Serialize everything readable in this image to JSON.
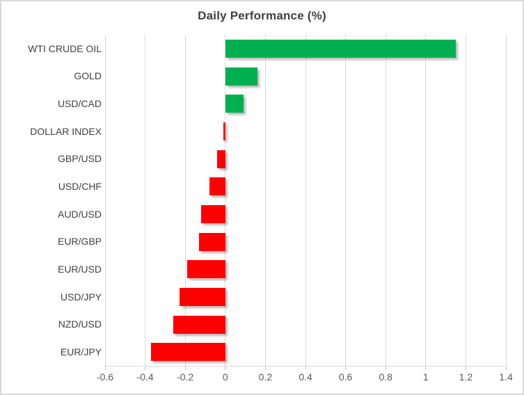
{
  "chart_data": {
    "type": "bar",
    "orientation": "horizontal",
    "title": "Daily Performance (%)",
    "xlabel": "",
    "ylabel": "",
    "categories": [
      "WTI CRUDE OIL",
      "GOLD",
      "USD/CAD",
      "DOLLAR INDEX",
      "GBP/USD",
      "USD/CHF",
      "AUD/USD",
      "EUR/GBP",
      "EUR/USD",
      "USD/JPY",
      "NZD/USD",
      "EUR/JPY"
    ],
    "values": [
      1.15,
      0.16,
      0.09,
      -0.01,
      -0.04,
      -0.08,
      -0.12,
      -0.13,
      -0.19,
      -0.23,
      -0.26,
      -0.37
    ],
    "xlim": [
      -0.6,
      1.4
    ],
    "x_ticks": [
      -0.6,
      -0.4,
      -0.2,
      0,
      0.2,
      0.4,
      0.6,
      0.8,
      1,
      1.2,
      1.4
    ],
    "x_tick_labels": [
      "-0.6",
      "-0.4",
      "-0.2",
      "0",
      "0.2",
      "0.4",
      "0.6",
      "0.8",
      "1",
      "1.2",
      "1.4"
    ],
    "grid": true,
    "legend": "none",
    "positive_color": "#00B050",
    "negative_color": "#FF0000",
    "gridline_color": "#D9D9D9",
    "title_color": "#404040",
    "label_color": "#404040",
    "tick_label_color": "#595959"
  }
}
